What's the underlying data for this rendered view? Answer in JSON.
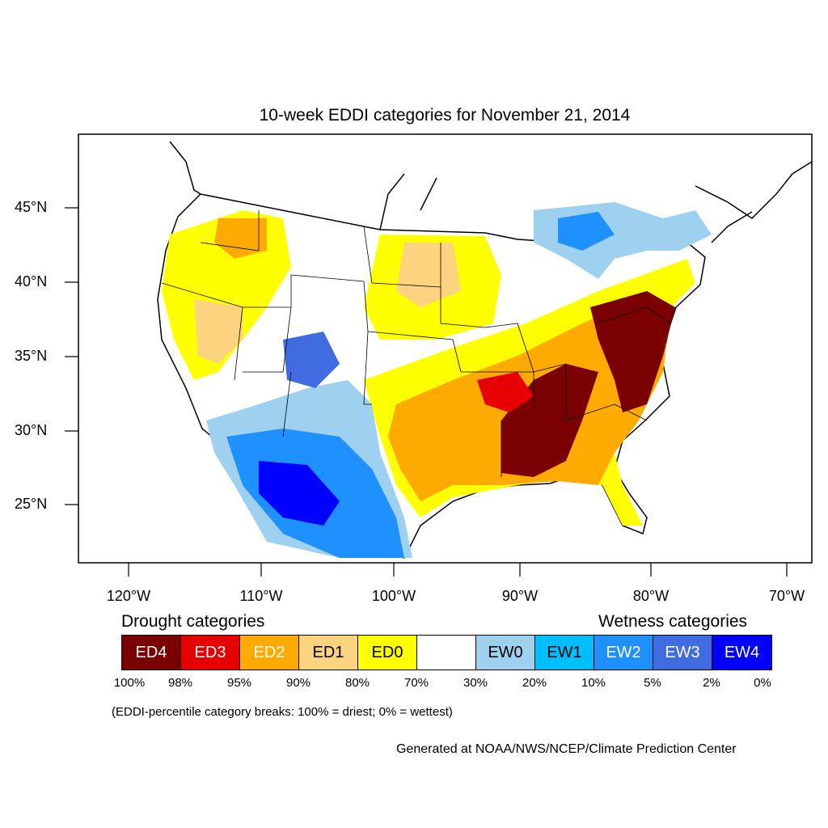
{
  "title": "10-week EDDI categories for November 21, 2014",
  "lat_labels": [
    "45°N",
    "40°N",
    "35°N",
    "30°N",
    "25°N"
  ],
  "lon_labels": [
    "120°W",
    "110°W",
    "100°W",
    "90°W",
    "80°W",
    "70°W"
  ],
  "legend": {
    "drought_heading": "Drought categories",
    "wetness_heading": "Wetness categories",
    "categories": [
      {
        "label": "ED4",
        "color": "#7b0000",
        "text_color": "#ffffff"
      },
      {
        "label": "ED3",
        "color": "#e60000",
        "text_color": "#ffffff"
      },
      {
        "label": "ED2",
        "color": "#ffaa00",
        "text_color": "#ffffff"
      },
      {
        "label": "ED1",
        "color": "#fcd37f",
        "text_color": "#000000"
      },
      {
        "label": "ED0",
        "color": "#ffff00",
        "text_color": "#000000"
      },
      {
        "label": "",
        "color": "#ffffff",
        "text_color": "#000000"
      },
      {
        "label": "EW0",
        "color": "#9ed1f0",
        "text_color": "#000000"
      },
      {
        "label": "EW1",
        "color": "#00bfff",
        "text_color": "#000000"
      },
      {
        "label": "EW2",
        "color": "#1e90ff",
        "text_color": "#ffffff"
      },
      {
        "label": "EW3",
        "color": "#3f6ce0",
        "text_color": "#ffffff"
      },
      {
        "label": "EW4",
        "color": "#0000ff",
        "text_color": "#ffffff"
      }
    ],
    "break_labels": [
      "100%",
      "98%",
      "95%",
      "90%",
      "80%",
      "70%",
      "30%",
      "20%",
      "10%",
      "5%",
      "2%",
      "0%"
    ],
    "note": "(EDDI-percentile category breaks: 100% = driest; 0% = wettest)"
  },
  "credit": "Generated at NOAA/NWS/NCEP/Climate Prediction Center"
}
